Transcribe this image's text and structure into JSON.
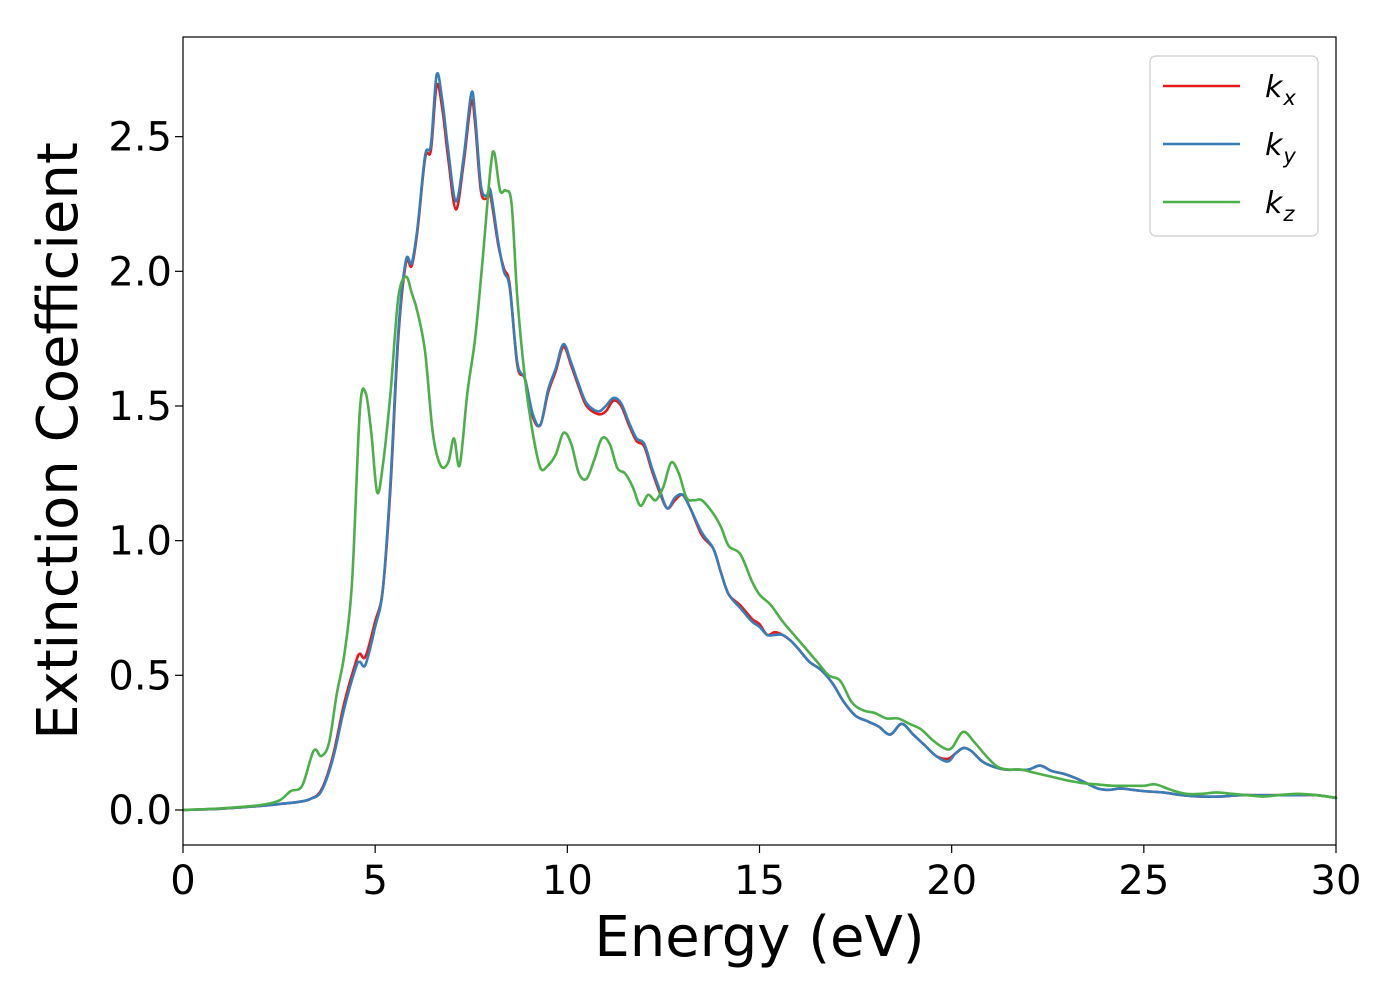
{
  "chart_data": {
    "type": "line",
    "title": "",
    "xlabel": "Energy (eV)",
    "ylabel": "Extinction Coefficient",
    "xlim": [
      0,
      30
    ],
    "ylim": [
      -0.13,
      2.87
    ],
    "xticks": [
      0,
      5,
      10,
      15,
      20,
      25,
      30
    ],
    "xtick_labels": [
      "0",
      "5",
      "10",
      "15",
      "20",
      "25",
      "30"
    ],
    "yticks": [
      0.0,
      0.5,
      1.0,
      1.5,
      2.0,
      2.5
    ],
    "ytick_labels": [
      "0.0",
      "0.5",
      "1.0",
      "1.5",
      "2.0",
      "2.5"
    ],
    "grid": false,
    "legend_position": "top-right",
    "series": [
      {
        "name": "k_x",
        "label_main": "k",
        "label_sub": "x",
        "color": "#e41a1c",
        "x": [
          0,
          1,
          2,
          2.5,
          3,
          3.3,
          3.6,
          3.9,
          4.2,
          4.5,
          4.6,
          4.75,
          5.0,
          5.2,
          5.4,
          5.6,
          5.8,
          5.95,
          6.1,
          6.3,
          6.45,
          6.6,
          6.75,
          6.9,
          7.1,
          7.3,
          7.5,
          7.6,
          7.75,
          7.9,
          8.0,
          8.2,
          8.35,
          8.5,
          8.7,
          8.9,
          9.1,
          9.3,
          9.5,
          9.7,
          9.9,
          10.1,
          10.3,
          10.5,
          10.8,
          11.0,
          11.2,
          11.4,
          11.6,
          11.8,
          12.0,
          12.2,
          12.4,
          12.6,
          12.8,
          13.0,
          13.2,
          13.5,
          13.8,
          14.0,
          14.2,
          14.5,
          14.8,
          15.0,
          15.2,
          15.4,
          15.6,
          15.8,
          16.0,
          16.3,
          16.6,
          16.9,
          17.2,
          17.5,
          17.8,
          18.1,
          18.4,
          18.7,
          19.0,
          19.3,
          19.6,
          19.9,
          20.1,
          20.3,
          20.5,
          20.8,
          21.1,
          21.4,
          21.7,
          22.0,
          22.3,
          22.6,
          22.9,
          23.2,
          23.5,
          23.8,
          24.1,
          24.4,
          24.7,
          25.0,
          25.5,
          26.0,
          26.5,
          27.0,
          27.5,
          28.0,
          28.5,
          29.0,
          29.5,
          30.0
        ],
        "y": [
          0.0,
          0.005,
          0.015,
          0.022,
          0.03,
          0.04,
          0.075,
          0.2,
          0.4,
          0.55,
          0.58,
          0.57,
          0.7,
          0.82,
          1.2,
          1.75,
          2.03,
          2.02,
          2.15,
          2.42,
          2.45,
          2.69,
          2.6,
          2.42,
          2.23,
          2.4,
          2.63,
          2.55,
          2.3,
          2.27,
          2.28,
          2.1,
          2.01,
          1.95,
          1.65,
          1.6,
          1.46,
          1.43,
          1.55,
          1.63,
          1.72,
          1.65,
          1.57,
          1.5,
          1.47,
          1.48,
          1.52,
          1.5,
          1.43,
          1.37,
          1.35,
          1.26,
          1.18,
          1.12,
          1.15,
          1.17,
          1.12,
          1.02,
          0.97,
          0.88,
          0.8,
          0.76,
          0.71,
          0.69,
          0.65,
          0.66,
          0.65,
          0.63,
          0.6,
          0.55,
          0.52,
          0.47,
          0.4,
          0.35,
          0.33,
          0.31,
          0.28,
          0.32,
          0.28,
          0.24,
          0.2,
          0.19,
          0.21,
          0.23,
          0.22,
          0.18,
          0.16,
          0.15,
          0.15,
          0.15,
          0.165,
          0.145,
          0.135,
          0.12,
          0.1,
          0.08,
          0.075,
          0.08,
          0.075,
          0.07,
          0.065,
          0.055,
          0.05,
          0.05,
          0.055,
          0.055,
          0.055,
          0.055,
          0.055,
          0.045
        ]
      },
      {
        "name": "k_y",
        "label_main": "k",
        "label_sub": "y",
        "color": "#377eb8",
        "x": [
          0,
          1,
          2,
          2.5,
          3,
          3.3,
          3.6,
          3.9,
          4.2,
          4.5,
          4.6,
          4.75,
          5.0,
          5.2,
          5.4,
          5.6,
          5.8,
          5.95,
          6.1,
          6.3,
          6.45,
          6.6,
          6.75,
          6.9,
          7.1,
          7.3,
          7.5,
          7.6,
          7.75,
          7.9,
          8.0,
          8.2,
          8.35,
          8.5,
          8.7,
          8.9,
          9.1,
          9.3,
          9.5,
          9.7,
          9.9,
          10.1,
          10.3,
          10.5,
          10.8,
          11.0,
          11.2,
          11.4,
          11.6,
          11.8,
          12.0,
          12.2,
          12.4,
          12.6,
          12.8,
          13.0,
          13.2,
          13.5,
          13.8,
          14.0,
          14.2,
          14.5,
          14.8,
          15.0,
          15.2,
          15.4,
          15.6,
          15.8,
          16.0,
          16.3,
          16.6,
          16.9,
          17.2,
          17.5,
          17.8,
          18.1,
          18.4,
          18.7,
          19.0,
          19.3,
          19.6,
          19.9,
          20.1,
          20.3,
          20.5,
          20.8,
          21.1,
          21.4,
          21.7,
          22.0,
          22.3,
          22.6,
          22.9,
          23.2,
          23.5,
          23.8,
          24.1,
          24.4,
          24.7,
          25.0,
          25.5,
          26.0,
          26.5,
          27.0,
          27.5,
          28.0,
          28.5,
          29.0,
          29.5,
          30.0
        ],
        "y": [
          0.0,
          0.005,
          0.015,
          0.022,
          0.03,
          0.04,
          0.07,
          0.19,
          0.38,
          0.53,
          0.55,
          0.54,
          0.68,
          0.82,
          1.22,
          1.77,
          2.04,
          2.03,
          2.16,
          2.43,
          2.47,
          2.73,
          2.63,
          2.45,
          2.26,
          2.42,
          2.66,
          2.58,
          2.32,
          2.28,
          2.3,
          2.11,
          2.0,
          1.94,
          1.66,
          1.6,
          1.47,
          1.43,
          1.56,
          1.64,
          1.73,
          1.66,
          1.58,
          1.51,
          1.48,
          1.5,
          1.53,
          1.51,
          1.44,
          1.38,
          1.36,
          1.27,
          1.19,
          1.12,
          1.16,
          1.17,
          1.12,
          1.03,
          0.97,
          0.88,
          0.8,
          0.75,
          0.7,
          0.68,
          0.65,
          0.65,
          0.65,
          0.63,
          0.6,
          0.55,
          0.52,
          0.47,
          0.4,
          0.35,
          0.33,
          0.31,
          0.28,
          0.32,
          0.28,
          0.24,
          0.2,
          0.18,
          0.21,
          0.23,
          0.22,
          0.18,
          0.16,
          0.15,
          0.15,
          0.15,
          0.165,
          0.145,
          0.135,
          0.12,
          0.1,
          0.08,
          0.075,
          0.08,
          0.075,
          0.07,
          0.065,
          0.055,
          0.05,
          0.05,
          0.055,
          0.055,
          0.055,
          0.055,
          0.055,
          0.045
        ]
      },
      {
        "name": "k_z",
        "label_main": "k",
        "label_sub": "z",
        "color": "#4daf4a",
        "x": [
          0,
          1,
          2,
          2.5,
          2.8,
          3.1,
          3.4,
          3.6,
          3.8,
          4.0,
          4.2,
          4.4,
          4.6,
          4.75,
          4.9,
          5.05,
          5.2,
          5.4,
          5.6,
          5.8,
          5.95,
          6.1,
          6.3,
          6.5,
          6.7,
          6.9,
          7.05,
          7.2,
          7.4,
          7.6,
          7.8,
          8.0,
          8.1,
          8.25,
          8.4,
          8.55,
          8.7,
          8.9,
          9.1,
          9.3,
          9.5,
          9.7,
          9.9,
          10.1,
          10.3,
          10.5,
          10.7,
          10.9,
          11.1,
          11.3,
          11.5,
          11.7,
          11.9,
          12.1,
          12.3,
          12.5,
          12.7,
          12.9,
          13.1,
          13.3,
          13.5,
          13.8,
          14.0,
          14.2,
          14.5,
          14.8,
          15.0,
          15.3,
          15.6,
          15.9,
          16.2,
          16.5,
          16.8,
          17.1,
          17.4,
          17.7,
          18.0,
          18.3,
          18.6,
          18.9,
          19.2,
          19.5,
          19.8,
          20.0,
          20.3,
          20.6,
          20.9,
          21.2,
          21.5,
          21.8,
          22.1,
          22.4,
          22.7,
          23.0,
          23.4,
          23.8,
          24.2,
          24.6,
          25.0,
          25.3,
          25.7,
          26.1,
          26.5,
          26.9,
          27.3,
          27.7,
          28.1,
          28.5,
          29.0,
          29.5,
          30.0
        ],
        "y": [
          0.0,
          0.006,
          0.018,
          0.035,
          0.07,
          0.09,
          0.22,
          0.2,
          0.25,
          0.43,
          0.58,
          0.85,
          1.48,
          1.55,
          1.4,
          1.18,
          1.28,
          1.55,
          1.9,
          1.98,
          1.92,
          1.85,
          1.7,
          1.4,
          1.28,
          1.29,
          1.38,
          1.28,
          1.55,
          1.75,
          2.05,
          2.38,
          2.44,
          2.3,
          2.3,
          2.25,
          1.9,
          1.6,
          1.4,
          1.27,
          1.28,
          1.32,
          1.4,
          1.36,
          1.25,
          1.23,
          1.3,
          1.38,
          1.36,
          1.27,
          1.25,
          1.2,
          1.13,
          1.17,
          1.15,
          1.2,
          1.29,
          1.25,
          1.16,
          1.15,
          1.15,
          1.1,
          1.05,
          0.98,
          0.95,
          0.85,
          0.8,
          0.76,
          0.7,
          0.65,
          0.6,
          0.55,
          0.5,
          0.48,
          0.4,
          0.37,
          0.36,
          0.34,
          0.34,
          0.32,
          0.3,
          0.26,
          0.23,
          0.23,
          0.29,
          0.25,
          0.2,
          0.16,
          0.15,
          0.15,
          0.14,
          0.13,
          0.12,
          0.11,
          0.1,
          0.095,
          0.09,
          0.09,
          0.09,
          0.095,
          0.075,
          0.06,
          0.06,
          0.065,
          0.06,
          0.055,
          0.05,
          0.055,
          0.06,
          0.055,
          0.045
        ]
      }
    ]
  }
}
